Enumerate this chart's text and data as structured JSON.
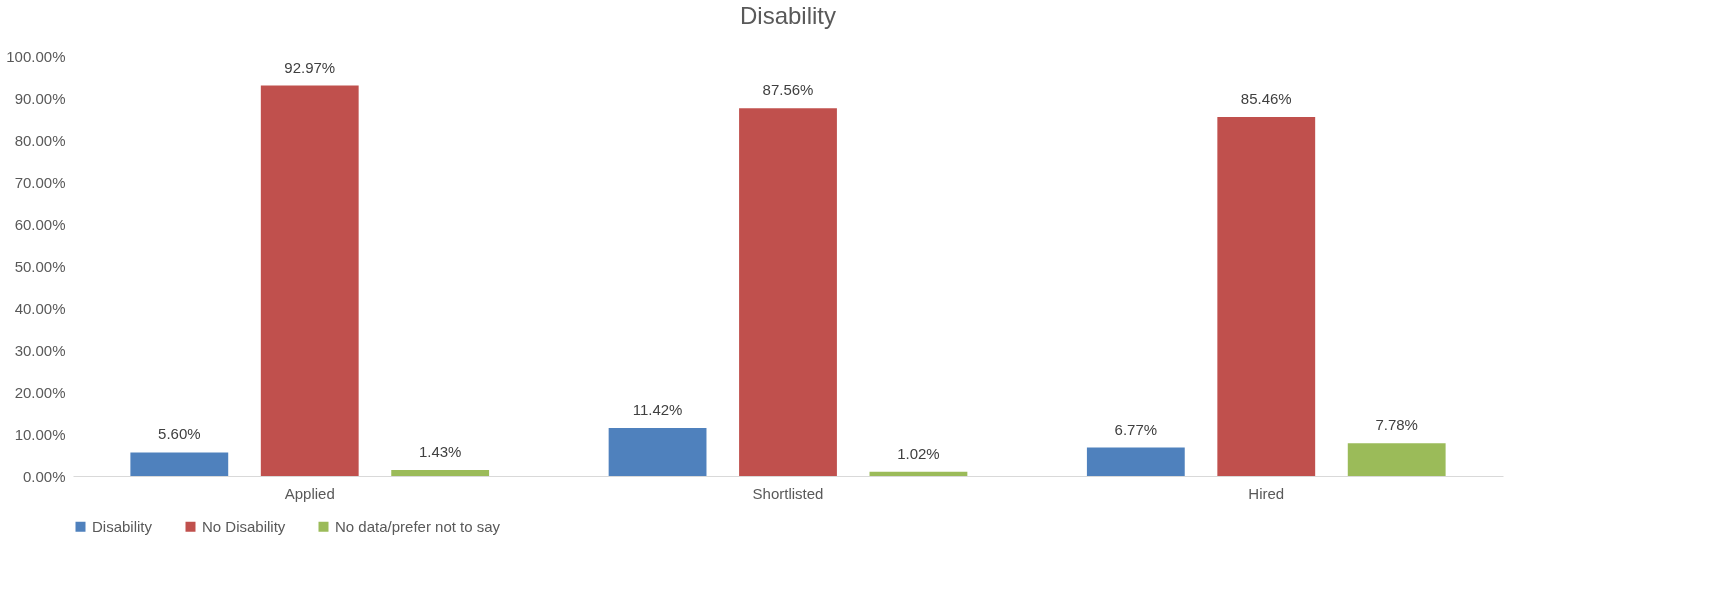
{
  "chart_data": {
    "type": "bar",
    "title": "Disability",
    "categories": [
      "Applied",
      "Shortlisted",
      "Hired"
    ],
    "series": [
      {
        "name": "Disability",
        "color": "#4f81bd",
        "values": [
          5.6,
          11.42,
          6.77
        ],
        "value_labels": [
          "5.60%",
          "11.42%",
          "6.77%"
        ]
      },
      {
        "name": "No Disability",
        "color": "#c0504d",
        "values": [
          92.97,
          87.56,
          85.46
        ],
        "value_labels": [
          "92.97%",
          "87.56%",
          "85.46%"
        ]
      },
      {
        "name": "No data/prefer not to say",
        "color": "#9bbb59",
        "values": [
          1.43,
          1.02,
          7.78
        ],
        "value_labels": [
          "1.43%",
          "1.02%",
          "7.78%"
        ]
      }
    ],
    "ylim": [
      0,
      100
    ],
    "yticks": [
      {
        "value": 0,
        "label": "0.00%"
      },
      {
        "value": 10,
        "label": "10.00%"
      },
      {
        "value": 20,
        "label": "20.00%"
      },
      {
        "value": 30,
        "label": "30.00%"
      },
      {
        "value": 40,
        "label": "40.00%"
      },
      {
        "value": 50,
        "label": "50.00%"
      },
      {
        "value": 60,
        "label": "60.00%"
      },
      {
        "value": 70,
        "label": "70.00%"
      },
      {
        "value": 80,
        "label": "80.00%"
      },
      {
        "value": 90,
        "label": "90.00%"
      },
      {
        "value": 100,
        "label": "100.00%"
      }
    ],
    "grid": false,
    "legend": "bottom"
  }
}
